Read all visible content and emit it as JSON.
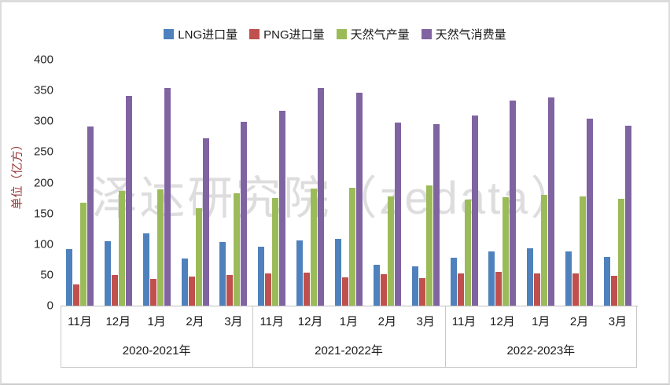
{
  "watermark": "泽达研究院（zedata）",
  "legend": {
    "items": [
      {
        "label": "LNG进口量",
        "color": "#4F81BD"
      },
      {
        "label": "PNG进口量",
        "color": "#C0504D"
      },
      {
        "label": "天然气产量",
        "color": "#9BBB59"
      },
      {
        "label": "天然气消费量",
        "color": "#8064A2"
      }
    ]
  },
  "y_axis": {
    "title": "单位（亿方）",
    "title_color": "#953735",
    "min": 0,
    "max": 400,
    "step": 50,
    "ticks": [
      0,
      50,
      100,
      150,
      200,
      250,
      300,
      350,
      400
    ]
  },
  "x_axis": {
    "months_per_group": [
      "11月",
      "12月",
      "1月",
      "2月",
      "3月"
    ],
    "year_groups": [
      "2020-2021年",
      "2021-2022年",
      "2022-2023年"
    ]
  },
  "chart_data": {
    "type": "bar",
    "title": "",
    "xlabel": "",
    "ylabel": "单位（亿方）",
    "ylim": [
      0,
      400
    ],
    "grid": false,
    "legend_position": "top",
    "groups": [
      "2020-2021年",
      "2021-2022年",
      "2022-2023年"
    ],
    "categories": [
      "11月",
      "12月",
      "1月",
      "2月",
      "3月",
      "11月",
      "12月",
      "1月",
      "2月",
      "3月",
      "11月",
      "12月",
      "1月",
      "2月",
      "3月"
    ],
    "series": [
      {
        "name": "LNG进口量",
        "color": "#4F81BD",
        "values": [
          92,
          105,
          117,
          77,
          104,
          96,
          106,
          109,
          66,
          64,
          78,
          88,
          93,
          88,
          79
        ]
      },
      {
        "name": "PNG进口量",
        "color": "#C0504D",
        "values": [
          35,
          50,
          44,
          47,
          50,
          53,
          54,
          46,
          51,
          45,
          52,
          55,
          53,
          52,
          49
        ]
      },
      {
        "name": "天然气产量",
        "color": "#9BBB59",
        "values": [
          168,
          186,
          189,
          158,
          183,
          175,
          191,
          192,
          178,
          196,
          173,
          176,
          180,
          178,
          174
        ]
      },
      {
        "name": "天然气消费量",
        "color": "#8064A2",
        "values": [
          291,
          341,
          354,
          272,
          299,
          317,
          354,
          346,
          298,
          295,
          309,
          334,
          339,
          304,
          293
        ]
      }
    ]
  }
}
